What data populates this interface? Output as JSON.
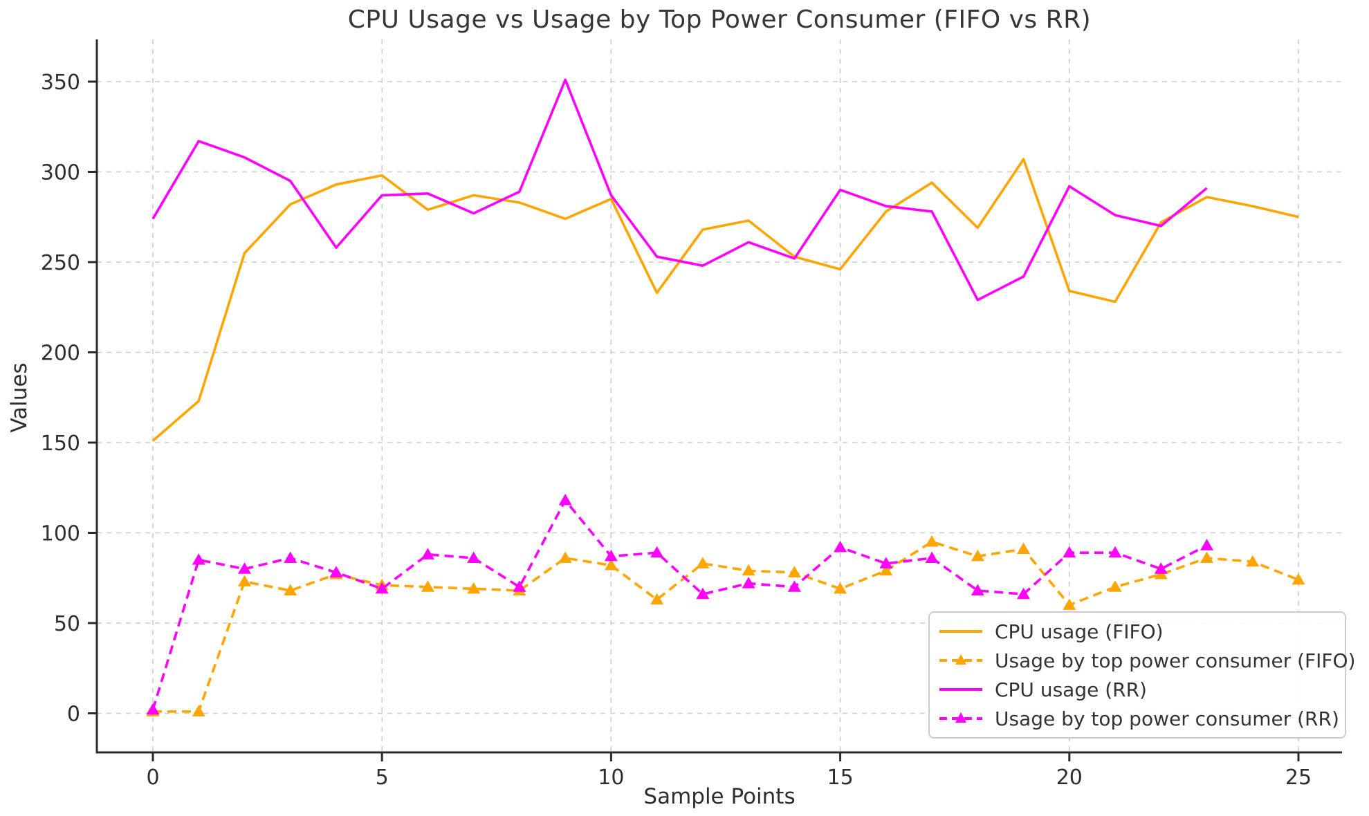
{
  "title": "CPU Usage vs Usage by Top Power Consumer (FIFO vs RR)",
  "xlabel": "Sample Points",
  "ylabel": "Values",
  "colors": {
    "fifo": "#FFA500",
    "rr": "#FF00FF",
    "grid": "#cccccc",
    "spine": "#2b2b2b",
    "tick_text": "#2e2e2e",
    "title_text": "#363636",
    "legend_border": "#cccccc",
    "legend_text": "#333333",
    "background": "#ffffff"
  },
  "chart_data": {
    "type": "line",
    "title": "CPU Usage vs Usage by Top Power Consumer (FIFO vs RR)",
    "xlabel": "Sample Points",
    "ylabel": "Values",
    "grid": true,
    "grid_style": "dashed",
    "legend_position": "lower right",
    "xticks": [
      0,
      5,
      10,
      15,
      20,
      25
    ],
    "yticks": [
      0,
      50,
      100,
      150,
      200,
      250,
      300,
      350
    ],
    "xlim": [
      -1.2,
      26.0
    ],
    "ylim": [
      -22,
      373
    ],
    "series": [
      {
        "name": "CPU usage (FIFO)",
        "color": "#FFA500",
        "linestyle": "solid",
        "marker": "none",
        "x": [
          0,
          1,
          2,
          3,
          4,
          5,
          6,
          7,
          8,
          9,
          10,
          11,
          12,
          13,
          14,
          15,
          16,
          17,
          18,
          19,
          20,
          21,
          22,
          23,
          24,
          25
        ],
        "values": [
          151,
          173,
          255,
          282,
          293,
          298,
          279,
          287,
          283,
          274,
          285,
          233,
          268,
          273,
          253,
          246,
          278,
          294,
          269,
          307,
          234,
          228,
          272,
          286,
          281,
          275
        ]
      },
      {
        "name": "Usage by top power consumer (FIFO)",
        "color": "#FFA500",
        "linestyle": "dashed",
        "marker": "triangle-up",
        "x": [
          0,
          1,
          2,
          3,
          4,
          5,
          6,
          7,
          8,
          9,
          10,
          11,
          12,
          13,
          14,
          15,
          16,
          17,
          18,
          19,
          20,
          21,
          22,
          23,
          24,
          25
        ],
        "values": [
          1,
          1,
          73,
          68,
          77,
          71,
          70,
          69,
          68,
          86,
          82,
          63,
          83,
          79,
          78,
          69,
          79,
          95,
          87,
          91,
          60,
          70,
          77,
          86,
          84,
          74
        ]
      },
      {
        "name": "CPU usage (RR)",
        "color": "#FF00FF",
        "linestyle": "solid",
        "marker": "none",
        "x": [
          0,
          1,
          2,
          3,
          4,
          5,
          6,
          7,
          8,
          9,
          10,
          11,
          12,
          13,
          14,
          15,
          16,
          17,
          18,
          19,
          20,
          21,
          22,
          23
        ],
        "values": [
          274,
          317,
          308,
          295,
          258,
          287,
          288,
          277,
          289,
          351,
          287,
          253,
          248,
          261,
          252,
          290,
          281,
          278,
          229,
          242,
          292,
          276,
          270,
          291
        ]
      },
      {
        "name": "Usage by top power consumer (RR)",
        "color": "#FF00FF",
        "linestyle": "dashed",
        "marker": "triangle-up",
        "x": [
          0,
          1,
          2,
          3,
          4,
          5,
          6,
          7,
          8,
          9,
          10,
          11,
          12,
          13,
          14,
          15,
          16,
          17,
          18,
          19,
          20,
          21,
          22,
          23
        ],
        "values": [
          2,
          85,
          80,
          86,
          78,
          69,
          88,
          86,
          70,
          118,
          87,
          89,
          66,
          72,
          70,
          92,
          83,
          86,
          68,
          66,
          89,
          89,
          80,
          93
        ]
      }
    ]
  }
}
